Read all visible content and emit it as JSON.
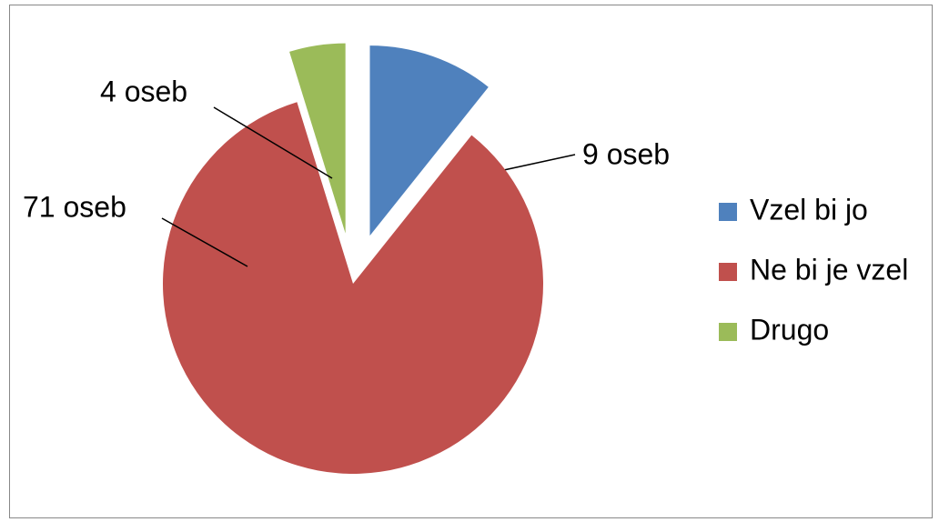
{
  "chart_data": {
    "type": "pie",
    "categories": [
      "Vzel bi jo",
      "Ne bi je vzel",
      "Drugo"
    ],
    "values": [
      9,
      71,
      4
    ],
    "value_labels": [
      "9 oseb",
      "71 oseb",
      "4 oseb"
    ],
    "colors": [
      "#4f81bd",
      "#c0504d",
      "#9bbb59"
    ],
    "legend": "right"
  }
}
